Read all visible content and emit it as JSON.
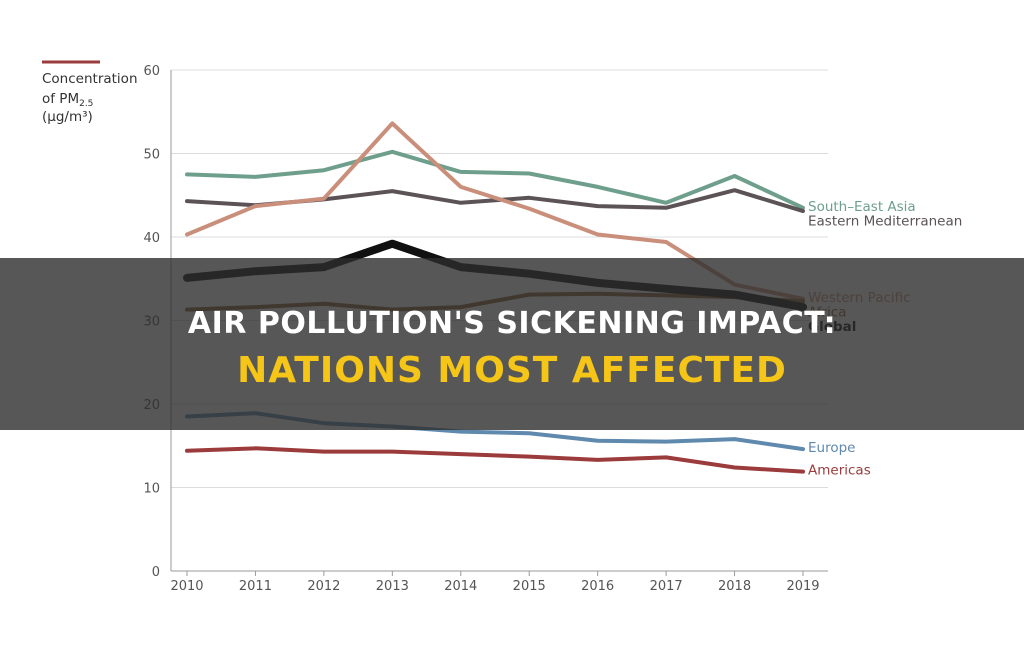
{
  "chart_data": {
    "type": "line",
    "title": "",
    "legend_line_color": "#9b3b3b",
    "ylabel_lines": [
      "Concentration",
      "of PM",
      "2.5",
      "(µg/m³)"
    ],
    "xlabel": "",
    "x": [
      "2010",
      "2011",
      "2012",
      "2013",
      "2014",
      "2015",
      "2016",
      "2017",
      "2018",
      "2019"
    ],
    "ylim": [
      0,
      60
    ],
    "yticks": [
      0,
      10,
      20,
      30,
      40,
      50,
      60
    ],
    "grid": true,
    "series": [
      {
        "name": "South–East Asia",
        "color": "#6e9f8c",
        "emphasis": false,
        "values": [
          47.5,
          47.2,
          48.0,
          50.2,
          47.8,
          47.6,
          46.0,
          44.1,
          47.3,
          43.5
        ]
      },
      {
        "name": "Eastern Mediterranean",
        "color": "#5b5356",
        "emphasis": false,
        "values": [
          44.3,
          43.8,
          44.5,
          45.5,
          44.1,
          44.7,
          43.7,
          43.5,
          45.6,
          43.1
        ]
      },
      {
        "name": "Western Pacific",
        "color": "#c98f7b",
        "emphasis": false,
        "values": [
          40.3,
          43.7,
          44.6,
          53.6,
          46.0,
          43.4,
          40.3,
          39.4,
          34.3,
          32.6
        ]
      },
      {
        "name": "Africa",
        "color": "#8a6232",
        "emphasis": false,
        "values": [
          31.3,
          31.6,
          32.0,
          31.3,
          31.6,
          33.1,
          33.2,
          33.0,
          32.8,
          32.3
        ]
      },
      {
        "name": "Global",
        "color": "#111111",
        "emphasis": true,
        "values": [
          35.1,
          35.9,
          36.4,
          39.2,
          36.4,
          35.6,
          34.5,
          33.8,
          33.1,
          31.6
        ]
      },
      {
        "name": "Europe",
        "color": "#5f89ad",
        "emphasis": false,
        "values": [
          18.5,
          18.9,
          17.7,
          17.3,
          16.7,
          16.5,
          15.6,
          15.5,
          15.8,
          14.6
        ]
      },
      {
        "name": "Americas",
        "color": "#9b3b3b",
        "emphasis": false,
        "values": [
          14.4,
          14.7,
          14.3,
          14.3,
          14.0,
          13.7,
          13.3,
          13.6,
          12.4,
          11.9
        ]
      }
    ]
  },
  "banner": {
    "line1": "AIR POLLUTION'S SICKENING IMPACT:",
    "line2": "NATIONS MOST AFFECTED"
  }
}
